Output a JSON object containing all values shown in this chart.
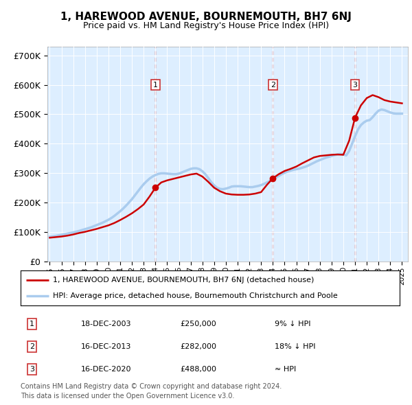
{
  "title": "1, HAREWOOD AVENUE, BOURNEMOUTH, BH7 6NJ",
  "subtitle": "Price paid vs. HM Land Registry's House Price Index (HPI)",
  "ylabel_ticks": [
    "£0",
    "£100K",
    "£200K",
    "£300K",
    "£400K",
    "£500K",
    "£600K",
    "£700K"
  ],
  "ylim": [
    0,
    730000
  ],
  "xlim_start": 1994.8,
  "xlim_end": 2025.5,
  "sale_dates": [
    2004.0,
    2014.0,
    2021.0
  ],
  "sale_labels": [
    "1",
    "2",
    "3"
  ],
  "sale_prices": [
    250000,
    282000,
    488000
  ],
  "hpi_color": "#aaccee",
  "hpi_linewidth": 2.5,
  "price_color": "#cc0000",
  "price_linewidth": 1.8,
  "dashed_color": "#cc3333",
  "background_color": "#ddeeff",
  "grid_color": "#ffffff",
  "legend_label_price": "1, HAREWOOD AVENUE, BOURNEMOUTH, BH7 6NJ (detached house)",
  "legend_label_hpi": "HPI: Average price, detached house, Bournemouth Christchurch and Poole",
  "table_rows": [
    [
      "1",
      "18-DEC-2003",
      "£250,000",
      "9% ↓ HPI"
    ],
    [
      "2",
      "16-DEC-2013",
      "£282,000",
      "18% ↓ HPI"
    ],
    [
      "3",
      "16-DEC-2020",
      "£488,000",
      "≈ HPI"
    ]
  ],
  "footnote1": "Contains HM Land Registry data © Crown copyright and database right 2024.",
  "footnote2": "This data is licensed under the Open Government Licence v3.0.",
  "hpi_years": [
    1995,
    1995.25,
    1995.5,
    1995.75,
    1996,
    1996.25,
    1996.5,
    1996.75,
    1997,
    1997.25,
    1997.5,
    1997.75,
    1998,
    1998.25,
    1998.5,
    1998.75,
    1999,
    1999.25,
    1999.5,
    1999.75,
    2000,
    2000.25,
    2000.5,
    2000.75,
    2001,
    2001.25,
    2001.5,
    2001.75,
    2002,
    2002.25,
    2002.5,
    2002.75,
    2003,
    2003.25,
    2003.5,
    2003.75,
    2004,
    2004.25,
    2004.5,
    2004.75,
    2005,
    2005.25,
    2005.5,
    2005.75,
    2006,
    2006.25,
    2006.5,
    2006.75,
    2007,
    2007.25,
    2007.5,
    2007.75,
    2008,
    2008.25,
    2008.5,
    2008.75,
    2009,
    2009.25,
    2009.5,
    2009.75,
    2010,
    2010.25,
    2010.5,
    2010.75,
    2011,
    2011.25,
    2011.5,
    2011.75,
    2012,
    2012.25,
    2012.5,
    2012.75,
    2013,
    2013.25,
    2013.5,
    2013.75,
    2014,
    2014.25,
    2014.5,
    2014.75,
    2015,
    2015.25,
    2015.5,
    2015.75,
    2016,
    2016.25,
    2016.5,
    2016.75,
    2017,
    2017.25,
    2017.5,
    2017.75,
    2018,
    2018.25,
    2018.5,
    2018.75,
    2019,
    2019.25,
    2019.5,
    2019.75,
    2020,
    2020.25,
    2020.5,
    2020.75,
    2021,
    2021.25,
    2021.5,
    2021.75,
    2022,
    2022.25,
    2022.5,
    2022.75,
    2023,
    2023.25,
    2023.5,
    2023.75,
    2024,
    2024.25,
    2024.5,
    2024.75,
    2025
  ],
  "hpi_values": [
    83000,
    84500,
    86000,
    88000,
    90000,
    92000,
    94000,
    96000,
    98000,
    100500,
    103000,
    106000,
    109000,
    112000,
    115000,
    119000,
    123000,
    127000,
    131000,
    136000,
    141000,
    147000,
    154000,
    162000,
    170000,
    179000,
    189000,
    200000,
    211000,
    224000,
    237000,
    250000,
    262000,
    272000,
    281000,
    288000,
    293000,
    297000,
    299000,
    299000,
    298000,
    297000,
    296000,
    296000,
    298000,
    302000,
    306000,
    310000,
    314000,
    316000,
    316000,
    313000,
    306000,
    296000,
    283000,
    269000,
    258000,
    250000,
    246000,
    245000,
    247000,
    250000,
    254000,
    255000,
    255000,
    255000,
    254000,
    253000,
    252000,
    252000,
    254000,
    256000,
    259000,
    263000,
    268000,
    273000,
    278000,
    284000,
    290000,
    296000,
    301000,
    305000,
    308000,
    311000,
    313000,
    315000,
    318000,
    321000,
    325000,
    330000,
    335000,
    340000,
    344000,
    348000,
    352000,
    355000,
    358000,
    361000,
    363000,
    365000,
    363000,
    360000,
    375000,
    400000,
    425000,
    448000,
    463000,
    472000,
    478000,
    480000,
    490000,
    502000,
    512000,
    516000,
    514000,
    510000,
    506000,
    503000,
    502000,
    502000,
    502000
  ],
  "price_years": [
    1995.0,
    1995.5,
    1996.0,
    1996.5,
    1997.0,
    1997.5,
    1998.0,
    1998.5,
    1999.0,
    1999.5,
    2000.0,
    2000.5,
    2001.0,
    2001.5,
    2002.0,
    2002.5,
    2003.0,
    2003.5,
    2004.0,
    2004.5,
    2005.0,
    2005.5,
    2006.0,
    2006.5,
    2007.0,
    2007.5,
    2008.0,
    2008.5,
    2009.0,
    2009.5,
    2010.0,
    2010.5,
    2011.0,
    2011.5,
    2012.0,
    2012.5,
    2013.0,
    2013.5,
    2014.0,
    2014.5,
    2015.0,
    2015.5,
    2016.0,
    2016.5,
    2017.0,
    2017.5,
    2018.0,
    2018.5,
    2019.0,
    2019.5,
    2020.0,
    2020.5,
    2021.0,
    2021.5,
    2022.0,
    2022.5,
    2023.0,
    2023.5,
    2024.0,
    2024.5,
    2025.0
  ],
  "price_values": [
    80000,
    82000,
    84000,
    87000,
    91000,
    96000,
    100000,
    105000,
    110000,
    116000,
    122000,
    130000,
    140000,
    151000,
    163000,
    177000,
    193000,
    220000,
    250000,
    268000,
    275000,
    280000,
    285000,
    290000,
    295000,
    298000,
    288000,
    270000,
    250000,
    238000,
    230000,
    227000,
    226000,
    226000,
    227000,
    230000,
    235000,
    260000,
    282000,
    296000,
    307000,
    314000,
    322000,
    333000,
    343000,
    353000,
    358000,
    360000,
    362000,
    363000,
    362000,
    410000,
    488000,
    530000,
    555000,
    565000,
    558000,
    548000,
    543000,
    540000,
    537000
  ]
}
